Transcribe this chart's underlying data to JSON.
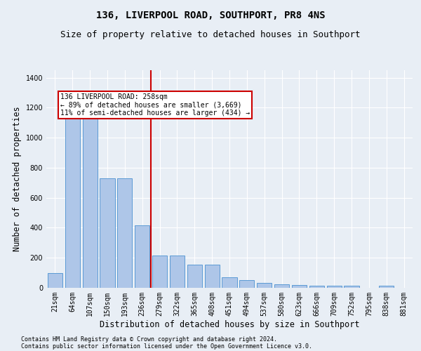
{
  "title": "136, LIVERPOOL ROAD, SOUTHPORT, PR8 4NS",
  "subtitle": "Size of property relative to detached houses in Southport",
  "xlabel": "Distribution of detached houses by size in Southport",
  "ylabel": "Number of detached properties",
  "categories": [
    "21sqm",
    "64sqm",
    "107sqm",
    "150sqm",
    "193sqm",
    "236sqm",
    "279sqm",
    "322sqm",
    "365sqm",
    "408sqm",
    "451sqm",
    "494sqm",
    "537sqm",
    "580sqm",
    "623sqm",
    "666sqm",
    "709sqm",
    "752sqm",
    "795sqm",
    "838sqm",
    "881sqm"
  ],
  "values": [
    100,
    1145,
    1150,
    730,
    730,
    415,
    215,
    215,
    155,
    155,
    70,
    50,
    35,
    25,
    18,
    15,
    13,
    13,
    0,
    13,
    0
  ],
  "bar_color": "#aec6e8",
  "bar_edge_color": "#5b9bd5",
  "vline_x": 5.5,
  "annotation_text": "136 LIVERPOOL ROAD: 258sqm\n← 89% of detached houses are smaller (3,669)\n11% of semi-detached houses are larger (434) →",
  "annotation_box_color": "#ffffff",
  "annotation_box_edge": "#cc0000",
  "vline_color": "#cc0000",
  "footer_line1": "Contains HM Land Registry data © Crown copyright and database right 2024.",
  "footer_line2": "Contains public sector information licensed under the Open Government Licence v3.0.",
  "bg_color": "#e8eef5",
  "plot_bg_color": "#e8eef5",
  "ylim": [
    0,
    1450
  ],
  "title_fontsize": 10,
  "subtitle_fontsize": 9,
  "axis_label_fontsize": 8.5,
  "tick_fontsize": 7,
  "footer_fontsize": 6
}
